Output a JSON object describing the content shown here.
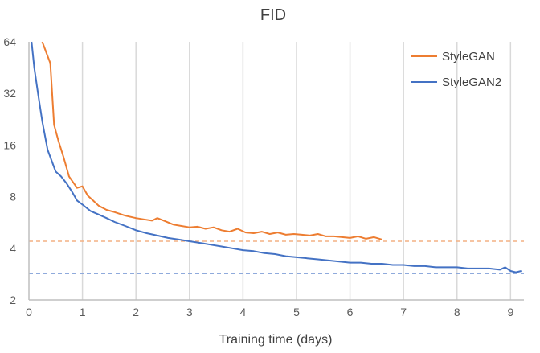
{
  "chart_data": {
    "type": "line",
    "title": "FID",
    "xlabel": "Training time (days)",
    "ylabel": "",
    "y_scale": "log2",
    "xlim": [
      0,
      9.25
    ],
    "ylim": [
      2,
      64
    ],
    "x_ticks": [
      "0",
      "1",
      "2",
      "3",
      "4",
      "5",
      "6",
      "7",
      "8",
      "9"
    ],
    "y_ticks": [
      "2",
      "4",
      "8",
      "16",
      "32",
      "64"
    ],
    "grid": "vertical",
    "legend_position": "top-right",
    "series": [
      {
        "name": "StyleGAN",
        "color": "#ED7D31",
        "x": [
          0.25,
          0.4,
          0.47,
          0.55,
          0.65,
          0.75,
          0.9,
          1.0,
          1.1,
          1.2,
          1.3,
          1.45,
          1.6,
          1.8,
          2.0,
          2.15,
          2.3,
          2.4,
          2.55,
          2.7,
          2.85,
          3.0,
          3.15,
          3.3,
          3.45,
          3.6,
          3.75,
          3.9,
          4.05,
          4.2,
          4.35,
          4.5,
          4.65,
          4.8,
          4.95,
          5.1,
          5.25,
          5.4,
          5.55,
          5.7,
          5.85,
          6.0,
          6.15,
          6.3,
          6.45,
          6.6
        ],
        "y": [
          64,
          48,
          21,
          17,
          13.5,
          10.5,
          9.0,
          9.2,
          8.1,
          7.6,
          7.1,
          6.7,
          6.5,
          6.2,
          6.0,
          5.9,
          5.8,
          6.0,
          5.75,
          5.5,
          5.4,
          5.3,
          5.35,
          5.2,
          5.3,
          5.1,
          5.0,
          5.2,
          4.95,
          4.9,
          5.0,
          4.85,
          4.95,
          4.8,
          4.85,
          4.8,
          4.75,
          4.85,
          4.7,
          4.7,
          4.65,
          4.6,
          4.7,
          4.55,
          4.65,
          4.5
        ]
      },
      {
        "name": "StyleGAN2",
        "color": "#4472C4",
        "x": [
          0.05,
          0.1,
          0.17,
          0.25,
          0.35,
          0.5,
          0.6,
          0.7,
          0.8,
          0.9,
          1.0,
          1.15,
          1.3,
          1.45,
          1.6,
          1.8,
          2.0,
          2.2,
          2.4,
          2.6,
          2.8,
          3.0,
          3.2,
          3.4,
          3.6,
          3.8,
          4.0,
          4.2,
          4.4,
          4.6,
          4.8,
          5.0,
          5.2,
          5.4,
          5.6,
          5.8,
          6.0,
          6.2,
          6.4,
          6.6,
          6.8,
          7.0,
          7.2,
          7.4,
          7.6,
          7.8,
          8.0,
          8.2,
          8.4,
          8.6,
          8.8,
          8.9,
          9.0,
          9.1,
          9.2
        ],
        "y": [
          64,
          45,
          32,
          22,
          15,
          11.2,
          10.5,
          9.6,
          8.6,
          7.6,
          7.2,
          6.6,
          6.3,
          6.0,
          5.7,
          5.4,
          5.1,
          4.9,
          4.75,
          4.6,
          4.5,
          4.4,
          4.3,
          4.2,
          4.1,
          4.0,
          3.9,
          3.85,
          3.75,
          3.7,
          3.6,
          3.55,
          3.5,
          3.45,
          3.4,
          3.35,
          3.3,
          3.3,
          3.25,
          3.25,
          3.2,
          3.2,
          3.15,
          3.15,
          3.1,
          3.1,
          3.1,
          3.05,
          3.05,
          3.05,
          3.0,
          3.1,
          2.95,
          2.9,
          2.95
        ]
      }
    ],
    "reference_lines": [
      {
        "y": 4.4,
        "color": "#F4B183",
        "style": "dashed"
      },
      {
        "y": 2.85,
        "color": "#8FAADC",
        "style": "dashed"
      }
    ]
  }
}
